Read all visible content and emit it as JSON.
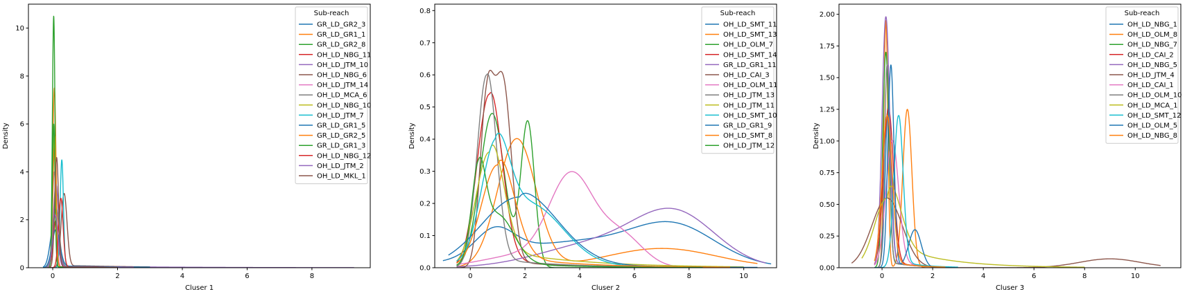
{
  "chart_data": [
    {
      "type": "line",
      "xlabel": "Cluser 1",
      "ylabel": "Density",
      "xlim": [
        -0.75,
        9.8
      ],
      "ylim": [
        0,
        11
      ],
      "xticks": [
        0,
        2,
        4,
        6,
        8
      ],
      "yticks": [
        0,
        2,
        4,
        6,
        8,
        10
      ],
      "legend": {
        "title": "Sub-reach",
        "placement": "top-right"
      },
      "series": [
        {
          "name": "GR_LD_GR2_3",
          "color": "#1f77b4",
          "peaks": [
            [
              0.05,
              1.9,
              0.12
            ]
          ],
          "tail": [
            0.05,
            3.0
          ],
          "range": [
            -0.3,
            3.0
          ]
        },
        {
          "name": "GR_LD_GR1_1",
          "color": "#ff7f0e",
          "peaks": [
            [
              0.05,
              7.5,
              0.05
            ]
          ],
          "tail": [
            0.05,
            1.5
          ],
          "range": [
            -0.2,
            2.0
          ]
        },
        {
          "name": "GR_LD_GR2_8",
          "color": "#2ca02c",
          "peaks": [
            [
              0.03,
              10.5,
              0.04
            ]
          ],
          "tail": [
            0.05,
            1.5
          ],
          "range": [
            -0.2,
            2.0
          ]
        },
        {
          "name": "OH_LD_NBG_11",
          "color": "#d62728",
          "peaks": [
            [
              0.1,
              2.0,
              0.08
            ]
          ],
          "tail": [
            0.05,
            2.0
          ],
          "range": [
            -0.2,
            2.5
          ]
        },
        {
          "name": "OH_LD_JTM_10",
          "color": "#9467bd",
          "peaks": [
            [
              0.1,
              3.5,
              0.08
            ]
          ],
          "tail": [
            0.08,
            3.0
          ],
          "range": [
            -0.3,
            9.3
          ]
        },
        {
          "name": "OH_LD_NBG_6",
          "color": "#8c564b",
          "peaks": [
            [
              0.35,
              3.1,
              0.09
            ]
          ],
          "tail": [
            0.1,
            2.5
          ],
          "range": [
            -0.2,
            3.0
          ]
        },
        {
          "name": "OH_LD_JTM_14",
          "color": "#e377c2",
          "peaks": [
            [
              0.05,
              4.0,
              0.06
            ]
          ],
          "tail": [
            0.05,
            1.5
          ],
          "range": [
            -0.2,
            2.0
          ]
        },
        {
          "name": "OH_LD_MCA_6",
          "color": "#7f7f7f",
          "peaks": [
            [
              0.1,
              2.5,
              0.1
            ]
          ],
          "tail": [
            0.05,
            2.0
          ],
          "range": [
            -0.3,
            2.5
          ]
        },
        {
          "name": "OH_LD_NBG_10",
          "color": "#bcbd22",
          "peaks": [
            [
              0.05,
              5.5,
              0.05
            ]
          ],
          "tail": [
            0.05,
            1.5
          ],
          "range": [
            -0.2,
            2.0
          ]
        },
        {
          "name": "OH_LD_JTM_7",
          "color": "#17becf",
          "peaks": [
            [
              0.28,
              4.5,
              0.05
            ]
          ],
          "tail": [
            0.05,
            1.5
          ],
          "range": [
            -0.1,
            2.0
          ]
        },
        {
          "name": "GR_LD_GR1_5",
          "color": "#1f77b4",
          "peaks": [
            [
              0.1,
              1.6,
              0.12
            ]
          ],
          "tail": [
            0.08,
            2.5
          ],
          "range": [
            -0.3,
            3.0
          ]
        },
        {
          "name": "GR_LD_GR2_5",
          "color": "#ff7f0e",
          "peaks": [
            [
              0.05,
              5.0,
              0.05
            ]
          ],
          "tail": [
            0.05,
            1.5
          ],
          "range": [
            -0.2,
            2.0
          ]
        },
        {
          "name": "GR_LD_GR1_3",
          "color": "#2ca02c",
          "peaks": [
            [
              0.03,
              6.0,
              0.04
            ]
          ],
          "tail": [
            0.05,
            1.5
          ],
          "range": [
            -0.2,
            2.0
          ]
        },
        {
          "name": "OH_LD_NBG_12",
          "color": "#d62728",
          "peaks": [
            [
              0.25,
              2.9,
              0.07
            ]
          ],
          "tail": [
            0.05,
            2.0
          ],
          "range": [
            -0.1,
            2.5
          ]
        },
        {
          "name": "OH_LD_JTM_2",
          "color": "#9467bd",
          "peaks": [
            [
              0.08,
              2.2,
              0.08
            ]
          ],
          "tail": [
            0.05,
            2.0
          ],
          "range": [
            -0.2,
            2.5
          ]
        },
        {
          "name": "OH_LD_MKL_1",
          "color": "#8c564b",
          "peaks": [
            [
              0.12,
              4.6,
              0.06
            ]
          ],
          "tail": [
            0.05,
            1.5
          ],
          "range": [
            -0.2,
            2.0
          ]
        }
      ]
    },
    {
      "type": "line",
      "xlabel": "Cluser 2",
      "ylabel": "Density",
      "xlim": [
        -1.3,
        11.2
      ],
      "ylim": [
        0,
        0.82
      ],
      "xticks": [
        0,
        2,
        4,
        6,
        8,
        10
      ],
      "yticks": [
        0.0,
        0.1,
        0.2,
        0.3,
        0.4,
        0.5,
        0.6,
        0.7,
        0.8
      ],
      "legend": {
        "title": "Sub-reach",
        "placement": "top-right"
      },
      "series": [
        {
          "name": "OH_LD_SMT_11",
          "color": "#1f77b4",
          "peaks": [
            [
              0.9,
              0.08,
              0.7
            ],
            [
              7.5,
              0.1,
              1.5
            ],
            [
              4.0,
              0.08,
              3.0
            ]
          ],
          "range": [
            -1.0,
            11.0
          ]
        },
        {
          "name": "OH_LD_SMT_13",
          "color": "#ff7f0e",
          "peaks": [
            [
              1.7,
              0.4,
              0.7
            ],
            [
              7.0,
              0.06,
              2.0
            ]
          ],
          "range": [
            -0.5,
            10.5
          ]
        },
        {
          "name": "OH_LD_OLM_7",
          "color": "#2ca02c",
          "peaks": [
            [
              0.8,
              0.48,
              0.45
            ],
            [
              2.1,
              0.45,
              0.25
            ]
          ],
          "range": [
            -0.5,
            6.0
          ]
        },
        {
          "name": "OH_LD_SMT_14",
          "color": "#d62728",
          "peaks": [
            [
              0.7,
              0.54,
              0.45
            ]
          ],
          "tail": [
            0.03,
            2.0
          ],
          "range": [
            -0.5,
            9.0
          ]
        },
        {
          "name": "GR_LD_GR1_11",
          "color": "#9467bd",
          "peaks": [
            [
              7.5,
              0.16,
              1.5
            ],
            [
              4.5,
              0.07,
              2.0
            ]
          ],
          "range": [
            -0.5,
            10.8
          ]
        },
        {
          "name": "OH_LD_CAI_3",
          "color": "#8c564b",
          "peaks": [
            [
              0.6,
              0.5,
              0.25
            ],
            [
              1.2,
              0.55,
              0.3
            ]
          ],
          "tail": [
            0.03,
            2.0
          ],
          "range": [
            -0.5,
            8.0
          ]
        },
        {
          "name": "OH_LD_OLM_11",
          "color": "#e377c2",
          "peaks": [
            [
              3.7,
              0.27,
              0.8
            ],
            [
              5.5,
              0.1,
              0.8
            ],
            [
              2.0,
              0.04,
              1.5
            ]
          ],
          "range": [
            -0.5,
            9.5
          ]
        },
        {
          "name": "OH_LD_JTM_13",
          "color": "#7f7f7f",
          "peaks": [
            [
              0.6,
              0.6,
              0.35
            ]
          ],
          "tail": [
            0.03,
            2.5
          ],
          "range": [
            -0.5,
            9.0
          ]
        },
        {
          "name": "OH_LD_JTM_11",
          "color": "#bcbd22",
          "peaks": [
            [
              0.7,
              0.36,
              0.5
            ]
          ],
          "tail": [
            0.06,
            3.0
          ],
          "range": [
            -0.5,
            10.0
          ]
        },
        {
          "name": "OH_LD_SMT_10",
          "color": "#17becf",
          "peaks": [
            [
              0.9,
              0.3,
              0.5
            ],
            [
              2.2,
              0.18,
              1.2
            ]
          ],
          "tail": [
            0.03,
            2.5
          ],
          "range": [
            -0.5,
            10.0
          ]
        },
        {
          "name": "GR_LD_GR1_9",
          "color": "#1f77b4",
          "peaks": [
            [
              1.8,
              0.22,
              1.4
            ]
          ],
          "tail": [
            0.02,
            3.0
          ],
          "range": [
            -0.8,
            10.5
          ]
        },
        {
          "name": "OH_LD_SMT_8",
          "color": "#ff7f0e",
          "peaks": [
            [
              1.0,
              0.32,
              0.6
            ]
          ],
          "tail": [
            0.04,
            2.5
          ],
          "range": [
            -0.5,
            9.5
          ]
        },
        {
          "name": "OH_LD_JTM_12",
          "color": "#2ca02c",
          "peaks": [
            [
              0.3,
              0.26,
              0.25
            ],
            [
              1.0,
              0.15,
              0.6
            ]
          ],
          "tail": [
            0.02,
            2.5
          ],
          "range": [
            -0.5,
            8.5
          ]
        }
      ]
    },
    {
      "type": "line",
      "xlabel": "Cluser 3",
      "ylabel": "Density",
      "xlim": [
        -1.7,
        11.8
      ],
      "ylim": [
        0,
        2.08
      ],
      "xticks": [
        0,
        2,
        4,
        6,
        8,
        10
      ],
      "yticks": [
        0.0,
        0.25,
        0.5,
        0.75,
        1.0,
        1.25,
        1.5,
        1.75,
        2.0
      ],
      "legend": {
        "title": "Sub-reach",
        "placement": "top-right"
      },
      "series": [
        {
          "name": "OH_LD_NBG_1",
          "color": "#1f77b4",
          "peaks": [
            [
              0.25,
              1.3,
              0.12
            ]
          ],
          "tail": [
            0.05,
            1.0
          ],
          "range": [
            -0.3,
            2.5
          ]
        },
        {
          "name": "OH_LD_OLM_8",
          "color": "#ff7f0e",
          "peaks": [
            [
              0.15,
              1.95,
              0.08
            ],
            [
              1.0,
              1.25,
              0.18
            ]
          ],
          "range": [
            -0.3,
            2.0
          ]
        },
        {
          "name": "OH_LD_NBG_7",
          "color": "#2ca02c",
          "peaks": [
            [
              0.15,
              1.7,
              0.12
            ]
          ],
          "tail": [
            0.05,
            1.0
          ],
          "range": [
            -0.3,
            2.5
          ]
        },
        {
          "name": "OH_LD_CAI_2",
          "color": "#d62728",
          "peaks": [
            [
              0.25,
              1.25,
              0.2
            ]
          ],
          "tail": [
            0.05,
            1.0
          ],
          "range": [
            -0.3,
            2.5
          ]
        },
        {
          "name": "OH_LD_NBG_5",
          "color": "#9467bd",
          "peaks": [
            [
              0.15,
              1.98,
              0.15
            ]
          ],
          "tail": [
            0.05,
            1.0
          ],
          "range": [
            -0.3,
            2.5
          ]
        },
        {
          "name": "OH_LD_JTM_4",
          "color": "#8c564b",
          "peaks": [
            [
              0.2,
              0.55,
              0.6
            ],
            [
              9.0,
              0.07,
              1.2
            ]
          ],
          "range": [
            -1.2,
            11.0
          ]
        },
        {
          "name": "OH_LD_CAI_1",
          "color": "#e377c2",
          "peaks": [
            [
              0.4,
              1.0,
              0.25
            ]
          ],
          "tail": [
            0.05,
            1.0
          ],
          "range": [
            -0.3,
            2.5
          ]
        },
        {
          "name": "OH_LD_OLM_10",
          "color": "#7f7f7f",
          "peaks": [
            [
              0.2,
              1.6,
              0.1
            ]
          ],
          "tail": [
            0.05,
            1.0
          ],
          "range": [
            -0.3,
            2.5
          ]
        },
        {
          "name": "OH_LD_MCA_1",
          "color": "#bcbd22",
          "peaks": [
            [
              0.2,
              0.55,
              0.5
            ]
          ],
          "tail": [
            0.2,
            2.0
          ],
          "range": [
            -0.8,
            8.0
          ]
        },
        {
          "name": "OH_LD_SMT_12",
          "color": "#17becf",
          "peaks": [
            [
              0.65,
              1.2,
              0.18
            ]
          ],
          "tail": [
            0.05,
            1.0
          ],
          "range": [
            -0.3,
            3.0
          ]
        },
        {
          "name": "OH_LD_OLM_5",
          "color": "#1f77b4",
          "peaks": [
            [
              0.35,
              1.6,
              0.12
            ],
            [
              1.3,
              0.3,
              0.25
            ]
          ],
          "range": [
            -0.3,
            3.0
          ]
        },
        {
          "name": "OH_LD_NBG_8",
          "color": "#ff7f0e",
          "peaks": [
            [
              0.2,
              1.2,
              0.2
            ]
          ],
          "tail": [
            0.05,
            1.0
          ],
          "range": [
            -0.3,
            2.5
          ]
        }
      ]
    }
  ]
}
